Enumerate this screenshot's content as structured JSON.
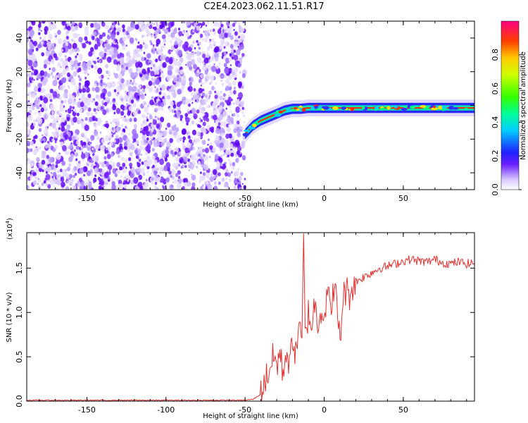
{
  "title": "C2E4.2023.062.11.51.R17",
  "chart_data": [
    {
      "type": "heatmap",
      "name": "spectrogram",
      "xlabel": "Height of straight line (km)",
      "ylabel": "Frequency (Hz)",
      "xlim": [
        -188,
        95
      ],
      "ylim": [
        -50,
        50
      ],
      "xticks": [
        -150,
        -100,
        -50,
        0,
        50
      ],
      "yticks": [
        -40,
        -20,
        0,
        20,
        40
      ],
      "noise_region_x": [
        -188,
        -50
      ],
      "signal_track": [
        {
          "x": -50,
          "y": -17
        },
        {
          "x": -45,
          "y": -12
        },
        {
          "x": -40,
          "y": -9
        },
        {
          "x": -35,
          "y": -7
        },
        {
          "x": -30,
          "y": -5
        },
        {
          "x": -25,
          "y": -3
        },
        {
          "x": -20,
          "y": -2
        },
        {
          "x": -15,
          "y": -2
        },
        {
          "x": -10,
          "y": -1.5
        },
        {
          "x": 0,
          "y": -1.5
        },
        {
          "x": 10,
          "y": -1.5
        },
        {
          "x": 20,
          "y": -1.5
        },
        {
          "x": 50,
          "y": -1.5
        },
        {
          "x": 95,
          "y": -1.5
        }
      ],
      "colorbar": {
        "label": "Normalized spectral amplitude",
        "range": [
          0,
          1
        ],
        "ticks": [
          "0.0",
          "0.2",
          "0.4",
          "0.6",
          "0.8"
        ]
      }
    },
    {
      "type": "line",
      "name": "snr",
      "xlabel": "Height of straight line (km)",
      "ylabel": "SNR (10 * v/v)",
      "y_multiplier_label": "(x10",
      "y_multiplier_exp": "4",
      "xlim": [
        -188,
        95
      ],
      "ylim": [
        0,
        1.9
      ],
      "xticks": [
        -150,
        -100,
        -50,
        0,
        50
      ],
      "yticks": [
        "0.0",
        "0.5",
        "1.0",
        "1.5"
      ],
      "color": "#e03030",
      "series": [
        {
          "x": [
            -188,
            -150,
            -100,
            -50,
            -45,
            -40,
            -38,
            -35,
            -32,
            -30,
            -28,
            -26,
            -24,
            -22,
            -20,
            -18,
            -16,
            -14,
            -13,
            -12,
            -10,
            -8,
            -6,
            -4,
            -2,
            0,
            2,
            4,
            6,
            8,
            10,
            12,
            14,
            16,
            18,
            20,
            25,
            30,
            35,
            40,
            45,
            50,
            55,
            60,
            65,
            70,
            75,
            80,
            85,
            90,
            95
          ],
          "y": [
            0.01,
            0.01,
            0.01,
            0.01,
            0.02,
            0.08,
            0.2,
            0.35,
            0.5,
            0.4,
            0.55,
            0.3,
            0.6,
            0.35,
            0.75,
            0.5,
            0.9,
            0.6,
            1.9,
            0.7,
            1.0,
            0.85,
            1.1,
            0.9,
            1.05,
            0.95,
            1.25,
            1.0,
            1.3,
            1.1,
            0.65,
            1.2,
            1.25,
            1.2,
            1.3,
            1.35,
            1.4,
            1.45,
            1.5,
            1.52,
            1.55,
            1.58,
            1.6,
            1.58,
            1.57,
            1.6,
            1.56,
            1.55,
            1.57,
            1.55,
            1.56
          ]
        }
      ]
    }
  ]
}
